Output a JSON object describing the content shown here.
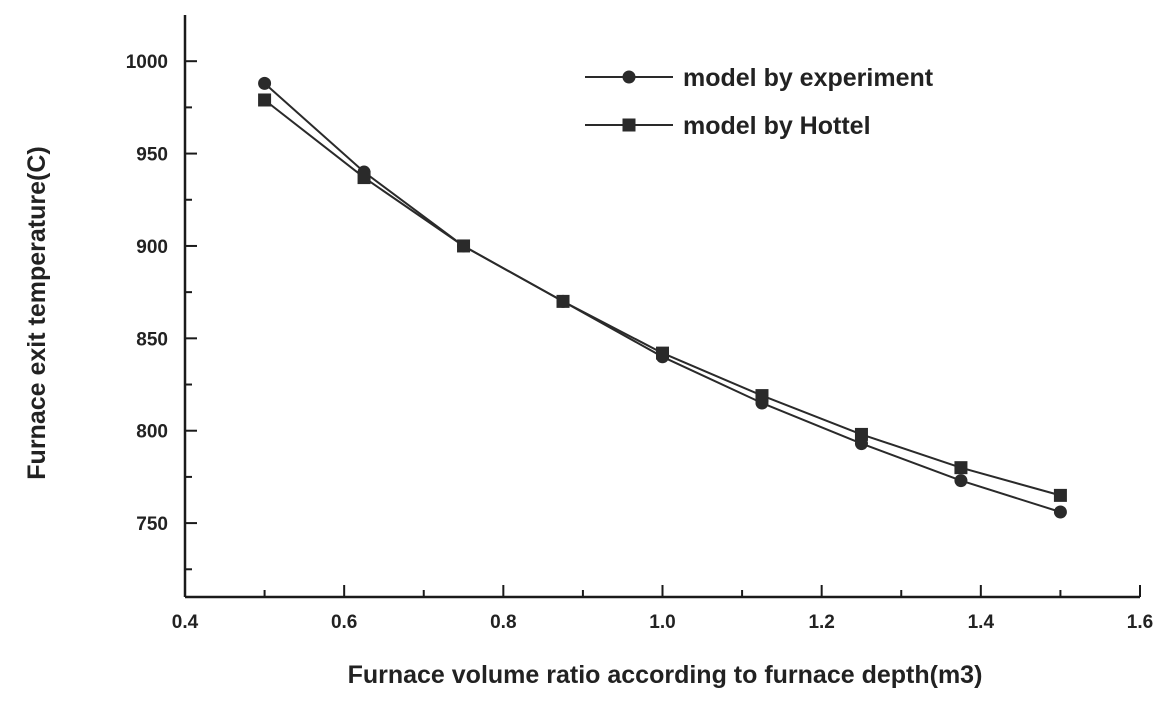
{
  "chart_data": {
    "type": "line",
    "title": "",
    "xlabel": "Furnace volume ratio according to furnace depth(m3)",
    "ylabel": "Furnace exit temperature(C)",
    "xlim": [
      0.4,
      1.6
    ],
    "ylim": [
      710,
      1025
    ],
    "xticks": [
      0.4,
      0.6,
      0.8,
      1.0,
      1.2,
      1.4,
      1.6
    ],
    "xtick_labels": [
      "0.4",
      "0.6",
      "0.8",
      "1.0",
      "1.2",
      "1.4",
      "1.6"
    ],
    "yticks": [
      750,
      800,
      850,
      900,
      950,
      1000
    ],
    "ytick_labels": [
      "750",
      "800",
      "850",
      "900",
      "950",
      "1000"
    ],
    "grid": false,
    "legend_position": "top-right",
    "x": [
      0.5,
      0.625,
      0.75,
      0.875,
      1.0,
      1.125,
      1.25,
      1.375,
      1.5
    ],
    "series": [
      {
        "name": "model by experiment",
        "marker": "circle",
        "values": [
          988,
          940,
          900,
          870,
          840,
          815,
          793,
          773,
          756
        ]
      },
      {
        "name": "model by Hottel",
        "marker": "square",
        "values": [
          979,
          937,
          900,
          870,
          842,
          819,
          798,
          780,
          765
        ]
      }
    ],
    "colors": {
      "line": "#2a2a2a",
      "axis": "#1a1a1a"
    }
  }
}
